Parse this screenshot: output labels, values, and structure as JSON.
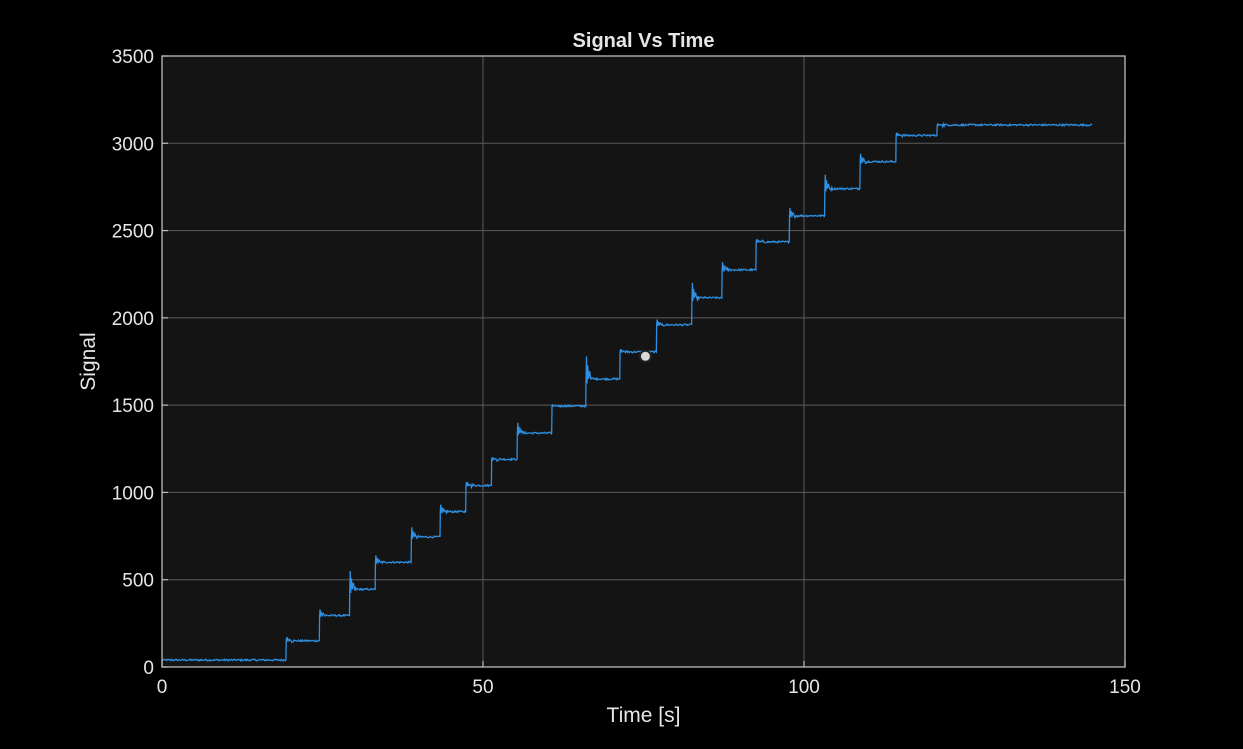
{
  "colors": {
    "background": "#000000",
    "plot_area": "#141414",
    "grid": "#5a5a5a",
    "axes": "#bdbdbd",
    "text": "#e6e6e6",
    "series": "#2f8fe0",
    "marker_fill": "#d9d9d9"
  },
  "chart_data": {
    "type": "line",
    "title": "Signal Vs Time",
    "xlabel": "Time [s]",
    "ylabel": "Signal",
    "xlim": [
      0,
      150
    ],
    "ylim": [
      0,
      3500
    ],
    "xticks": [
      0,
      50,
      100,
      150
    ],
    "yticks": [
      0,
      500,
      1000,
      1500,
      2000,
      2500,
      3000,
      3500
    ],
    "xtick_labels": [
      "0",
      "50",
      "100",
      "150"
    ],
    "ytick_labels": [
      "0",
      "500",
      "1000",
      "1500",
      "2000",
      "2500",
      "3000",
      "3500"
    ],
    "grid": true,
    "series": [
      {
        "steps": [
          {
            "t": 0,
            "v": 40
          },
          {
            "t": 19.3,
            "v": 150
          },
          {
            "t": 24.5,
            "v": 295
          },
          {
            "t": 29.2,
            "v": 445
          },
          {
            "t": 33.2,
            "v": 600
          },
          {
            "t": 38.8,
            "v": 745
          },
          {
            "t": 43.3,
            "v": 890
          },
          {
            "t": 47.3,
            "v": 1040
          },
          {
            "t": 51.3,
            "v": 1190
          },
          {
            "t": 55.3,
            "v": 1340
          },
          {
            "t": 60.7,
            "v": 1495
          },
          {
            "t": 66.0,
            "v": 1650
          },
          {
            "t": 71.3,
            "v": 1805
          },
          {
            "t": 77.0,
            "v": 1960
          },
          {
            "t": 82.5,
            "v": 2115
          },
          {
            "t": 87.2,
            "v": 2275
          },
          {
            "t": 92.5,
            "v": 2435
          },
          {
            "t": 97.7,
            "v": 2585
          },
          {
            "t": 103.2,
            "v": 2740
          },
          {
            "t": 108.7,
            "v": 2895
          },
          {
            "t": 114.3,
            "v": 3045
          },
          {
            "t": 120.7,
            "v": 3105
          }
        ],
        "end_t": 145,
        "overshoots": [
          null,
          170,
          330,
          550,
          640,
          800,
          930,
          1060,
          1200,
          1400,
          1500,
          1780,
          1820,
          1990,
          2200,
          2320,
          2450,
          2630,
          2820,
          2940,
          3060,
          3110
        ]
      }
    ],
    "marker": {
      "x": 75.3,
      "y": 1780
    }
  }
}
